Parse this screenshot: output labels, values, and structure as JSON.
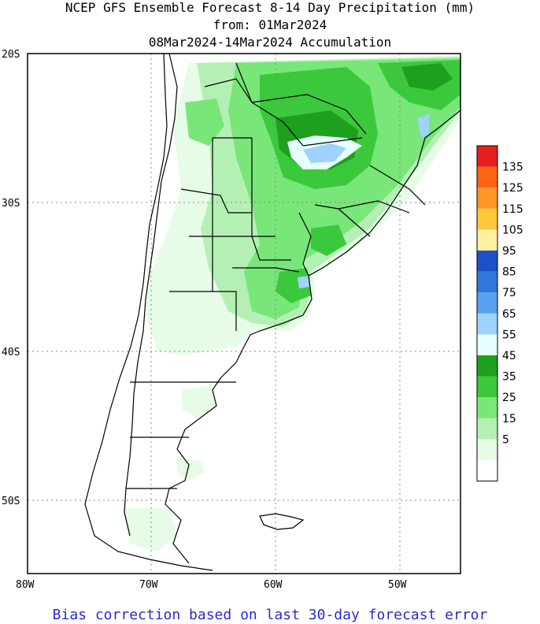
{
  "title": {
    "line1": "NCEP GFS Ensemble Forecast 8-14 Day Precipitation (mm)",
    "line2": "from: 01Mar2024",
    "line3": "08Mar2024-14Mar2024 Accumulation"
  },
  "footnote": "Bias correction based on last 30-day forecast error",
  "axes": {
    "lat_labels": [
      "20S",
      "30S",
      "40S",
      "50S"
    ],
    "lon_labels": [
      "80W",
      "70W",
      "60W",
      "50W"
    ]
  },
  "legend": {
    "labels": [
      "135",
      "125",
      "115",
      "105",
      "95",
      "85",
      "75",
      "65",
      "55",
      "45",
      "35",
      "25",
      "15",
      "5"
    ],
    "colors": [
      "#ffffff",
      "#e6fce6",
      "#b4f0b4",
      "#78e678",
      "#3cc83c",
      "#1ea01e",
      "#e6ffff",
      "#a0d2ff",
      "#5aa0f0",
      "#3278dc",
      "#1e50c8",
      "#fff0a0",
      "#ffc83c",
      "#ff9628",
      "#ff6414",
      "#e61e1e"
    ]
  },
  "map_colors": {
    "land": "#ffffff",
    "ocean": "#ffffff",
    "light": "#e6fce6",
    "mid": "#b4f0b4",
    "green": "#78e678",
    "dark": "#3cc83c",
    "darker": "#1ea01e",
    "pale_blue": "#a0d2ff",
    "ice": "#e6ffff"
  }
}
